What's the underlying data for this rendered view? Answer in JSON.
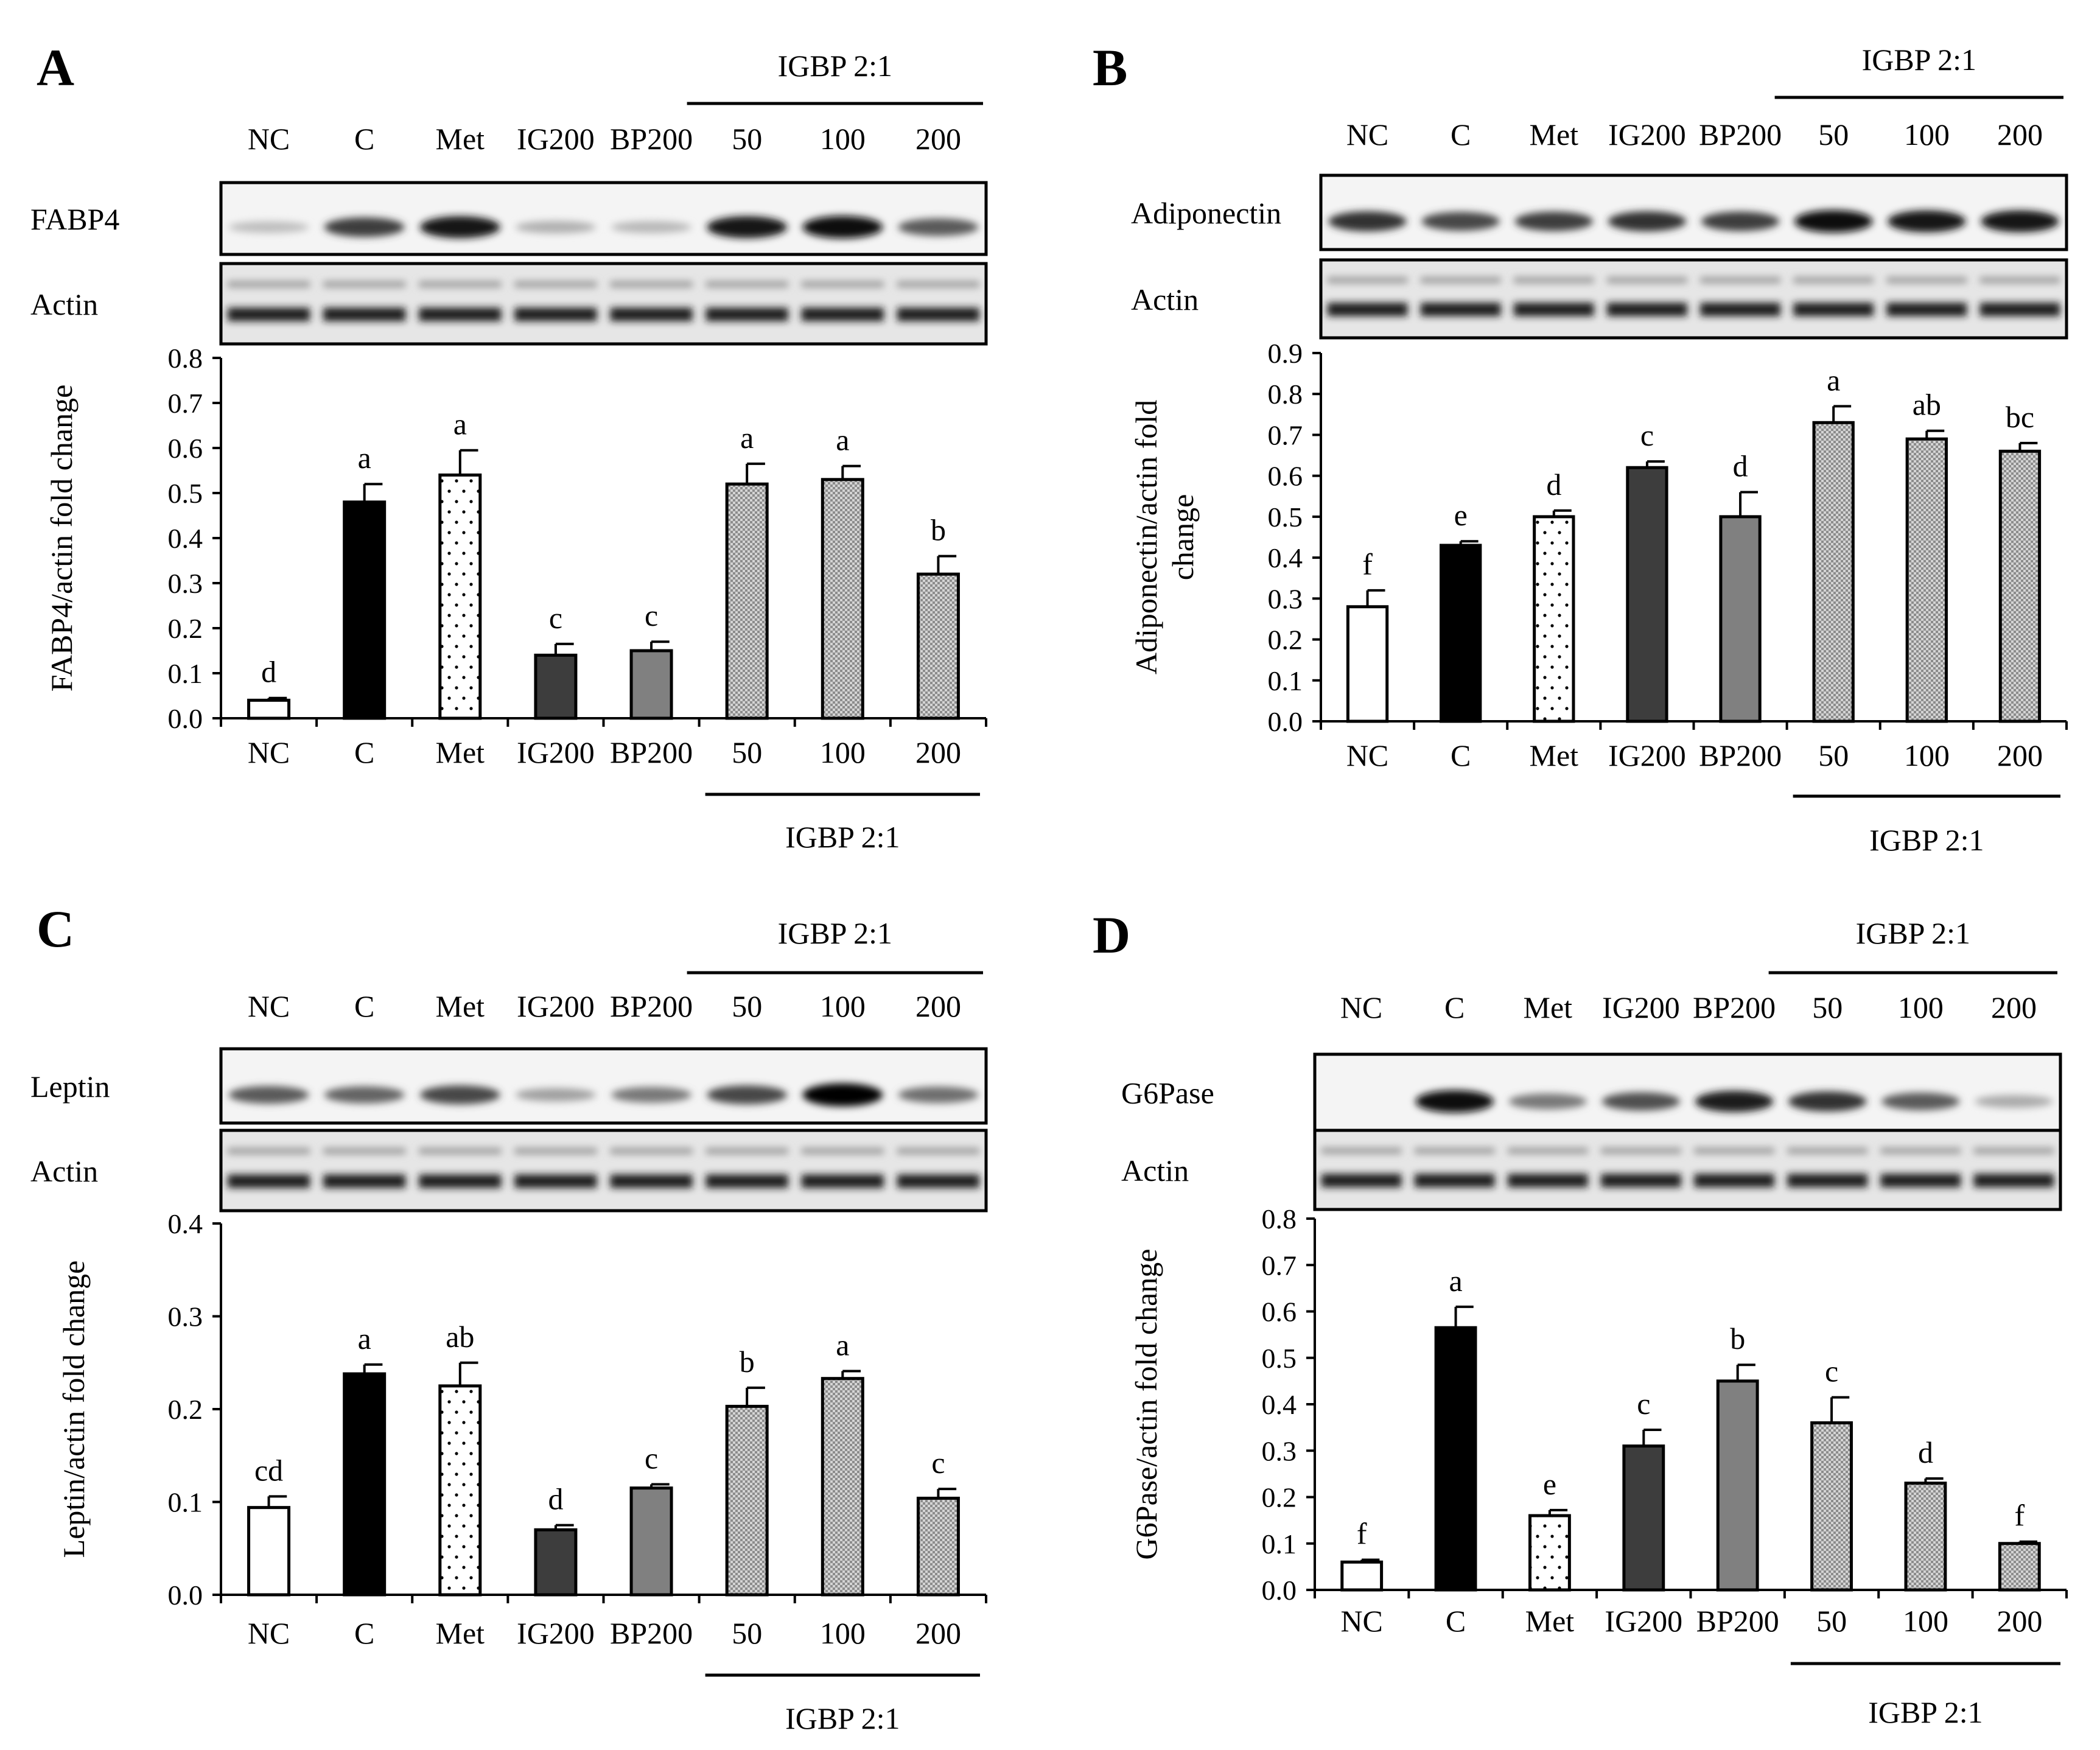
{
  "colors": {
    "NC": "#ffffff",
    "C": "#000000",
    "Met": "#ffffff",
    "IG200": "#3d3d3d",
    "BP200": "#808080",
    "IGBP": "#cfcfcf"
  },
  "chart_data": [
    {
      "type": "bar",
      "panel": "A",
      "blot_label": "FABP4",
      "actin_label": "Actin",
      "blot_intensity": [
        0.05,
        0.7,
        0.9,
        0.12,
        0.08,
        0.9,
        0.95,
        0.55
      ],
      "lane_labels": [
        "NC",
        "C",
        "Met",
        "IG200",
        "BP200",
        "50",
        "100",
        "200"
      ],
      "group_label": "IGBP 2:1",
      "categories": [
        "NC",
        "C",
        "Met",
        "IG200",
        "BP200",
        "50",
        "100",
        "200"
      ],
      "values": [
        0.04,
        0.48,
        0.54,
        0.14,
        0.15,
        0.52,
        0.53,
        0.32
      ],
      "errors": [
        0.005,
        0.04,
        0.055,
        0.025,
        0.02,
        0.045,
        0.03,
        0.04
      ],
      "letters": [
        "d",
        "a",
        "a",
        "c",
        "c",
        "a",
        "a",
        "b"
      ],
      "ylabel": "FABP4/actin fold change",
      "ylim": [
        0,
        0.8
      ],
      "yticks": [
        "0.0",
        "0.1",
        "0.2",
        "0.3",
        "0.4",
        "0.5",
        "0.6",
        "0.7",
        "0.8"
      ]
    },
    {
      "type": "bar",
      "panel": "B",
      "blot_label": "Adiponectin",
      "actin_label": "Actin",
      "blot_intensity": [
        0.75,
        0.65,
        0.7,
        0.75,
        0.7,
        0.95,
        0.9,
        0.9
      ],
      "lane_labels": [
        "NC",
        "C",
        "Met",
        "IG200",
        "BP200",
        "50",
        "100",
        "200"
      ],
      "group_label": "IGBP 2:1",
      "categories": [
        "NC",
        "C",
        "Met",
        "IG200",
        "BP200",
        "50",
        "100",
        "200"
      ],
      "values": [
        0.28,
        0.43,
        0.5,
        0.62,
        0.5,
        0.73,
        0.69,
        0.66
      ],
      "errors": [
        0.04,
        0.01,
        0.015,
        0.015,
        0.06,
        0.04,
        0.02,
        0.02
      ],
      "letters": [
        "f",
        "e",
        "d",
        "c",
        "d",
        "a",
        "ab",
        "bc"
      ],
      "ylabel_lines": [
        "Adiponectin/actin fold",
        "change"
      ],
      "ylim": [
        0,
        0.9
      ],
      "yticks": [
        "0.0",
        "0.1",
        "0.2",
        "0.3",
        "0.4",
        "0.5",
        "0.6",
        "0.7",
        "0.8",
        "0.9"
      ]
    },
    {
      "type": "bar",
      "panel": "C",
      "blot_label": "Leptin",
      "actin_label": "Actin",
      "blot_intensity": [
        0.55,
        0.5,
        0.65,
        0.2,
        0.4,
        0.65,
        1.0,
        0.45
      ],
      "lane_labels": [
        "NC",
        "C",
        "Met",
        "IG200",
        "BP200",
        "50",
        "100",
        "200"
      ],
      "group_label": "IGBP 2:1",
      "categories": [
        "NC",
        "C",
        "Met",
        "IG200",
        "BP200",
        "50",
        "100",
        "200"
      ],
      "values": [
        0.094,
        0.238,
        0.225,
        0.07,
        0.115,
        0.203,
        0.233,
        0.104
      ],
      "errors": [
        0.012,
        0.01,
        0.025,
        0.005,
        0.004,
        0.02,
        0.008,
        0.01
      ],
      "letters": [
        "cd",
        "a",
        "ab",
        "d",
        "c",
        "b",
        "a",
        "c"
      ],
      "ylabel": "Leptin/actin fold change",
      "ylim": [
        0,
        0.4
      ],
      "yticks": [
        "0.0",
        "0.1",
        "0.2",
        "0.3",
        "0.4"
      ]
    },
    {
      "type": "bar",
      "panel": "D",
      "blot_label": "G6Pase",
      "actin_label": "Actin",
      "blot_intensity": [
        0.0,
        0.95,
        0.4,
        0.6,
        0.85,
        0.75,
        0.55,
        0.15
      ],
      "lane_labels": [
        "NC",
        "C",
        "Met",
        "IG200",
        "BP200",
        "50",
        "100",
        "200"
      ],
      "group_label": "IGBP 2:1",
      "categories": [
        "NC",
        "C",
        "Met",
        "IG200",
        "BP200",
        "50",
        "100",
        "200"
      ],
      "values": [
        0.06,
        0.565,
        0.16,
        0.31,
        0.45,
        0.36,
        0.23,
        0.1
      ],
      "errors": [
        0.005,
        0.045,
        0.012,
        0.035,
        0.035,
        0.055,
        0.01,
        0.004
      ],
      "letters": [
        "f",
        "a",
        "e",
        "c",
        "b",
        "c",
        "d",
        "f"
      ],
      "ylabel": "G6Pase/actin fold change",
      "ylim": [
        0,
        0.8
      ],
      "yticks": [
        "0.0",
        "0.1",
        "0.2",
        "0.3",
        "0.4",
        "0.5",
        "0.6",
        "0.7",
        "0.8"
      ]
    }
  ]
}
